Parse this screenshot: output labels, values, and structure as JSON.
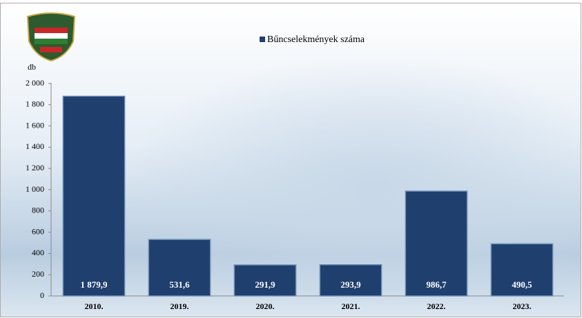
{
  "chart_data": {
    "type": "bar",
    "y_label": "db",
    "legend": "Bűncselekmények száma",
    "categories": [
      "2010.",
      "2019.",
      "2020.",
      "2021.",
      "2022.",
      "2023."
    ],
    "series": [
      {
        "name": "Bűncselekmények száma",
        "color": "#1f3f6e",
        "values": [
          1879.9,
          531.6,
          291.9,
          293.9,
          986.7,
          490.5
        ],
        "value_labels": [
          "1 879,9",
          "531,6",
          "291,9",
          "293,9",
          "986,7",
          "490,5"
        ]
      }
    ],
    "ylim": [
      0,
      2000
    ],
    "yticks": [
      0,
      200,
      400,
      600,
      800,
      {
        "value": 1000,
        "label": "1 000"
      },
      {
        "value": 1200,
        "label": "1 200"
      },
      {
        "value": 1400,
        "label": "1 400"
      },
      {
        "value": 1600,
        "label": "1 600"
      },
      {
        "value": 1800,
        "label": "1 800"
      },
      {
        "value": 2000,
        "label": "2 000"
      }
    ]
  }
}
